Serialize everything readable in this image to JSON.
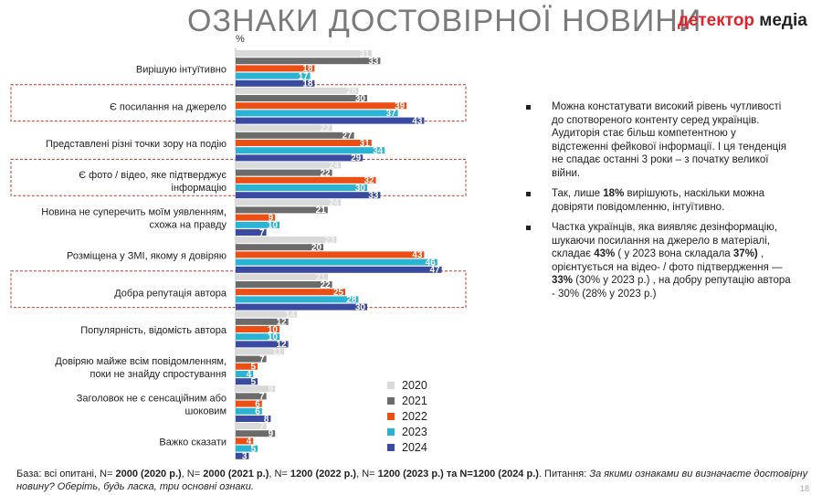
{
  "header": {
    "title": "ОЗНАКИ ДОСТОВІРНОЇ НОВИНИ",
    "logo_part1": "детектор",
    "logo_part2": " медіа"
  },
  "colors": {
    "2020": "#d9d9d9",
    "2021": "#6b6b6b",
    "2022": "#ec4e14",
    "2023": "#2ab3d3",
    "2024": "#3a4aa0",
    "highlight": "#c0392b"
  },
  "chart_data": {
    "type": "bar",
    "orientation": "horizontal",
    "unit": "%",
    "categories": [
      "Вирішую інтуїтивно",
      "Є посилання на джерело",
      "Представлені різні точки зору на подію",
      "Є фото / відео, яке підтверджує інформацію",
      "Новина не суперечить моїм уявленням, схожа на правду",
      "Розміщена у ЗМІ, якому я довіряю",
      "Добра репутація автора",
      "Популярність, відомість автора",
      "Довіряю майже всім повідомленням, поки не знайду спростування",
      "Заголовок не є сенсаційним або шоковим",
      "Важко сказати"
    ],
    "highlighted": [
      1,
      3,
      6
    ],
    "series": [
      {
        "name": "2020",
        "values": [
          31,
          28,
          22,
          24,
          24,
          23,
          21,
          14,
          11,
          9,
          7
        ]
      },
      {
        "name": "2021",
        "values": [
          33,
          30,
          27,
          22,
          21,
          20,
          22,
          12,
          7,
          7,
          9
        ]
      },
      {
        "name": "2022",
        "values": [
          18,
          39,
          31,
          32,
          9,
          43,
          25,
          10,
          5,
          6,
          4
        ]
      },
      {
        "name": "2023",
        "values": [
          17,
          37,
          34,
          30,
          10,
          46,
          28,
          10,
          4,
          6,
          5
        ]
      },
      {
        "name": "2024",
        "values": [
          18,
          43,
          29,
          33,
          7,
          47,
          30,
          12,
          5,
          8,
          3
        ]
      }
    ]
  },
  "bullets": [
    {
      "parts": [
        {
          "t": "Можна констатувати високий рівень чутливості до спотвореного контенту серед українців. Аудиторія стає більш компетентною у відстеженні фейкової інформації. І ця тенденція не спадає останні 3 роки – з початку великої війни.",
          "b": false
        }
      ]
    },
    {
      "parts": [
        {
          "t": "Так, лише ",
          "b": false
        },
        {
          "t": "18%",
          "b": true
        },
        {
          "t": " вирішують, наскільки можна довіряти повідомленню, інтуїтивно.",
          "b": false
        }
      ]
    },
    {
      "parts": [
        {
          "t": "Частка українців, яка виявляє дезінформацію, шукаючи посилання на джерело в матеріалі, складає ",
          "b": false
        },
        {
          "t": "43%",
          "b": true
        },
        {
          "t": " ( у 2023 вона складала ",
          "b": false
        },
        {
          "t": "37%)",
          "b": true
        },
        {
          "t": " , орієнтується на відео- / фото підтвердження — ",
          "b": false
        },
        {
          "t": "33%",
          "b": true
        },
        {
          "t": " (30% у 2023 р.) , на добру репутацію автора - 30% (28% у 2023 р.)",
          "b": false
        }
      ]
    }
  ],
  "footer": {
    "parts": [
      {
        "t": "База: всі опитані, N= ",
        "s": ""
      },
      {
        "t": "2000 (2020 р.)",
        "s": "b"
      },
      {
        "t": ", N= ",
        "s": ""
      },
      {
        "t": "2000 (2021 р.)",
        "s": "b"
      },
      {
        "t": ", N= ",
        "s": ""
      },
      {
        "t": "1200 (2022 р.)",
        "s": "b"
      },
      {
        "t": ", N= ",
        "s": ""
      },
      {
        "t": "1200 (2023 р.) та N=1200 (2024 р.)",
        "s": "b"
      },
      {
        "t": ". Питання: ",
        "s": ""
      },
      {
        "t": "За якими ознаками ви визначаєте достовірну новину? Оберіть, будь ласка, три основні ознаки.",
        "s": "i"
      }
    ]
  },
  "page_number": "18"
}
